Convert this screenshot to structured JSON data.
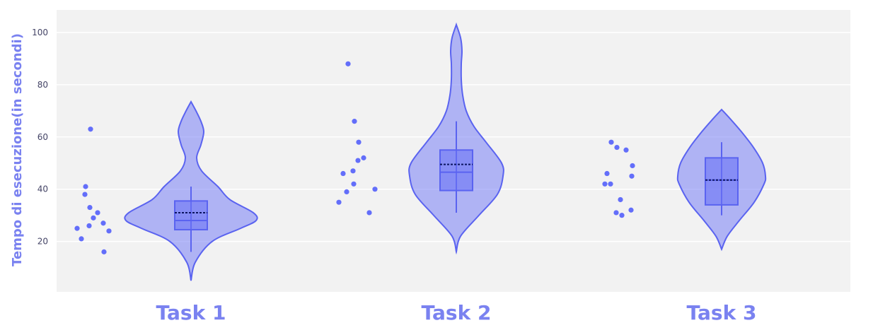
{
  "chart_data": {
    "type": "violin",
    "ylabel": "Tempo di esecuzione(in secondi)",
    "xlabel": "",
    "title": "",
    "ylim": [
      0,
      106
    ],
    "yticks": [
      20,
      40,
      60,
      80,
      100
    ],
    "categories": [
      "Task 1",
      "Task 2",
      "Task 3"
    ],
    "grid": true,
    "legend": "none",
    "colors": {
      "fill": "#6b73f5",
      "line": "#5a63f0",
      "points": "#636efa",
      "mean_line": "#0b1460",
      "plot_bg": "#f2f2f2",
      "axis_title": "#7a82f0",
      "tick_text": "#444466"
    },
    "series": [
      {
        "category": "Task 1",
        "points": [
          63,
          41,
          38,
          33,
          31,
          29,
          27,
          26,
          25,
          24,
          21,
          16
        ],
        "box": {
          "q1": 24.5,
          "median": 28,
          "q3": 35.5,
          "mean": 31,
          "whisker_low": 16,
          "whisker_high": 41
        },
        "violin_range": [
          5,
          73.5
        ]
      },
      {
        "category": "Task 2",
        "points": [
          88,
          66,
          58,
          52,
          51,
          47,
          46,
          42,
          40,
          39,
          35,
          31
        ],
        "box": {
          "q1": 39.5,
          "median": 46.5,
          "q3": 55,
          "mean": 49.5,
          "whisker_low": 31,
          "whisker_high": 66
        },
        "violin_range": [
          16,
          103
        ]
      },
      {
        "category": "Task 3",
        "points": [
          58,
          56,
          55,
          49,
          46,
          45,
          42,
          42,
          36,
          32,
          31,
          30
        ],
        "box": {
          "q1": 34,
          "median": 43.5,
          "q3": 52,
          "mean": 43.5,
          "whisker_low": 30,
          "whisker_high": 58
        },
        "violin_range": [
          17,
          70.5
        ]
      }
    ]
  }
}
